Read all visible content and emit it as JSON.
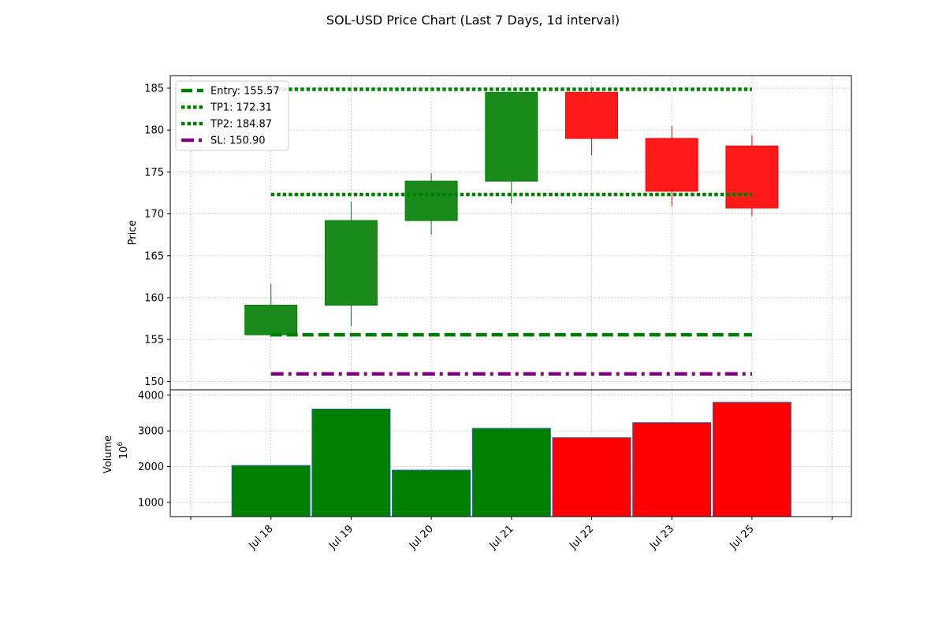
{
  "chart_data": {
    "type": "candlestick",
    "title": "SOL-USD Price Chart (Last 7 Days, 1d interval)",
    "categories": [
      "Jul 18",
      "Jul 19",
      "Jul 20",
      "Jul 21",
      "Jul 22",
      "Jul 23",
      "Jul 25"
    ],
    "price_panel": {
      "ylabel": "Price",
      "ylim": [
        149,
        186.5
      ],
      "yticks": [
        150,
        155,
        160,
        165,
        170,
        175,
        180,
        185
      ],
      "grid": true,
      "candles": [
        {
          "date": "Jul 18",
          "open": 155.57,
          "high": 161.7,
          "low": 155.3,
          "close": 159.1,
          "direction": "up"
        },
        {
          "date": "Jul 19",
          "open": 159.1,
          "high": 171.5,
          "low": 156.6,
          "close": 169.2,
          "direction": "up"
        },
        {
          "date": "Jul 20",
          "open": 169.2,
          "high": 174.9,
          "low": 167.5,
          "close": 173.9,
          "direction": "up"
        },
        {
          "date": "Jul 21",
          "open": 173.9,
          "high": 184.6,
          "low": 171.2,
          "close": 184.5,
          "direction": "up"
        },
        {
          "date": "Jul 22",
          "open": 184.5,
          "high": 184.7,
          "low": 177.0,
          "close": 179.0,
          "direction": "down"
        },
        {
          "date": "Jul 23",
          "open": 179.0,
          "high": 180.5,
          "low": 170.9,
          "close": 172.7,
          "direction": "down"
        },
        {
          "date": "Jul 25",
          "open": 178.1,
          "high": 179.4,
          "low": 169.7,
          "close": 170.7,
          "direction": "down"
        }
      ],
      "levels": [
        {
          "name": "Entry: 155.57",
          "value": 155.57,
          "color": "#008000",
          "style": "dashed"
        },
        {
          "name": "TP1: 172.31",
          "value": 172.31,
          "color": "#008000",
          "style": "dotted"
        },
        {
          "name": "TP2: 184.87",
          "value": 184.87,
          "color": "#008000",
          "style": "dotted"
        },
        {
          "name": "SL: 150.90",
          "value": 150.9,
          "color": "#800080",
          "style": "dashdot"
        }
      ],
      "legend_placement": "upper-left"
    },
    "volume_panel": {
      "ylabel": "Volume",
      "ylabel_multiplier": "10",
      "ylabel_exponent": "6",
      "ylim": [
        600,
        4150
      ],
      "yticks": [
        1000,
        2000,
        3000,
        4000
      ],
      "grid": true,
      "values": [
        2030,
        3610,
        1900,
        3070,
        2810,
        3230,
        3800
      ],
      "colors": [
        "#008000",
        "#008000",
        "#008000",
        "#008000",
        "#ff0000",
        "#ff0000",
        "#ff0000"
      ]
    },
    "colors": {
      "up": "#008000",
      "down": "#ff0000",
      "up_fill": "#1a8a1a",
      "down_fill": "#ff1a1a",
      "sl": "#800080"
    }
  }
}
